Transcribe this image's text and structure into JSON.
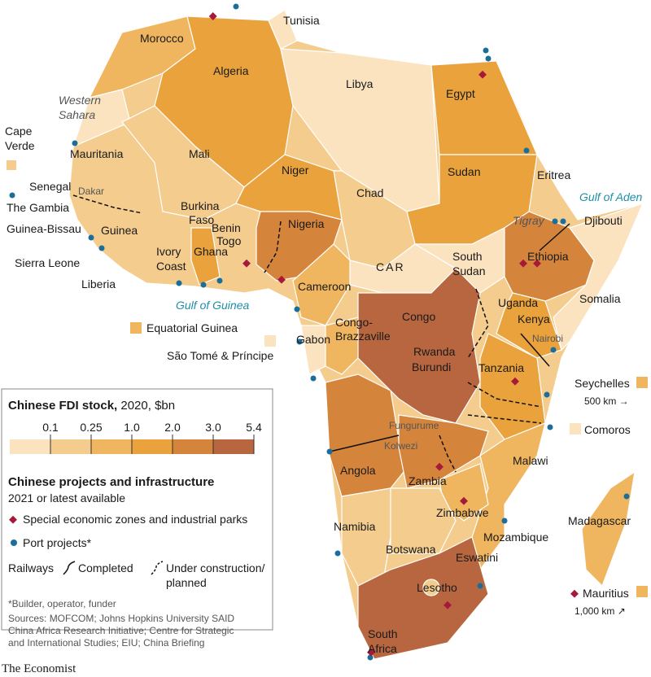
{
  "legend": {
    "title": "Chinese FDI stock,",
    "subtitle": "2020, $bn",
    "ticks": [
      0.1,
      0.25,
      {
        "value": 1,
        "label": "1.0"
      },
      {
        "value": 2,
        "label": "2.0"
      },
      {
        "value": 3,
        "label": "3.0"
      },
      5.4
    ],
    "colors": [
      "#fbe3c0",
      "#f4cc8e",
      "#efb65f",
      "#e9a23c",
      "#d5843c",
      "#b8663f"
    ]
  },
  "projects": {
    "title": "Chinese projects and infrastructure",
    "subtitle": "2021 or latest available",
    "sez": "Special economic zones and industrial parks",
    "ports": "Port projects*",
    "railways": "Railways",
    "completed": "Completed",
    "planned": [
      "Under construction/",
      "planned"
    ]
  },
  "footnote": "*Builder, operator, funder",
  "sources": [
    "Sources: MOFCOM; Johns Hopkins University SAID",
    "China Africa Research Initiative; Centre for Strategic",
    "and International Studies; EIU; China Briefing"
  ],
  "brand": "The Economist",
  "map_labels": {
    "tunisia": "Tunisia",
    "morocco": "Morocco",
    "algeria": "Algeria",
    "libya": "Libya",
    "egypt": "Egypt",
    "western-sahara": [
      "Western",
      "Sahara"
    ],
    "cape-verde": [
      "Cape",
      "Verde"
    ],
    "mauritania": "Mauritania",
    "mali": "Mali",
    "niger": "Niger",
    "chad": "Chad",
    "sudan": "Sudan",
    "eritrea": "Eritrea",
    "gulf-of-aden": "Gulf of Aden",
    "djibouti": "Djibouti",
    "tigray": "Tigray",
    "senegal": "Senegal",
    "dakar": "Dakar",
    "gambia": "The Gambia",
    "guinea-bissau": "Guinea-Bissau",
    "guinea": "Guinea",
    "sierra-leone": "Sierra Leone",
    "liberia": "Liberia",
    "burkina-faso": [
      "Burkina",
      "Faso"
    ],
    "benin": "Benin",
    "togo": "Togo",
    "nigeria": "Nigeria",
    "ivory-coast": [
      "Ivory",
      "Coast"
    ],
    "ghana": "Ghana",
    "car": "CAR",
    "south-sudan": [
      "South",
      "Sudan"
    ],
    "ethiopia": "Ethiopia",
    "somalia": "Somalia",
    "uganda": "Uganda",
    "kenya": "Kenya",
    "nairobi": "Nairobi",
    "cameroon": "Cameroon",
    "gulf-of-guinea": "Gulf of Guinea",
    "equatorial-guinea": "Equatorial Guinea",
    "gabon": "Gabon",
    "congo-brazzaville": [
      "Congo-",
      "Brazzaville"
    ],
    "sao-tome": "São Tomé & Príncipe",
    "congo": "Congo",
    "rwanda": "Rwanda",
    "burundi": "Burundi",
    "tanzania": "Tanzania",
    "seychelles": "Seychelles",
    "seychelles-scale": "500 km →",
    "fungurume": "Fungurume",
    "kolwezi": "Kolwezi",
    "comoros": "Comoros",
    "malawi": "Malawi",
    "angola": "Angola",
    "zambia": "Zambia",
    "zimbabwe": "Zimbabwe",
    "madagascar": "Madagascar",
    "namibia": "Namibia",
    "mozambique": "Mozambique",
    "botswana": "Botswana",
    "eswatini": "Eswatini",
    "lesotho": "Lesotho",
    "mauritius": "Mauritius",
    "mauritius-scale": "1,000 km ↗",
    "south-africa": [
      "South",
      "Africa"
    ]
  }
}
